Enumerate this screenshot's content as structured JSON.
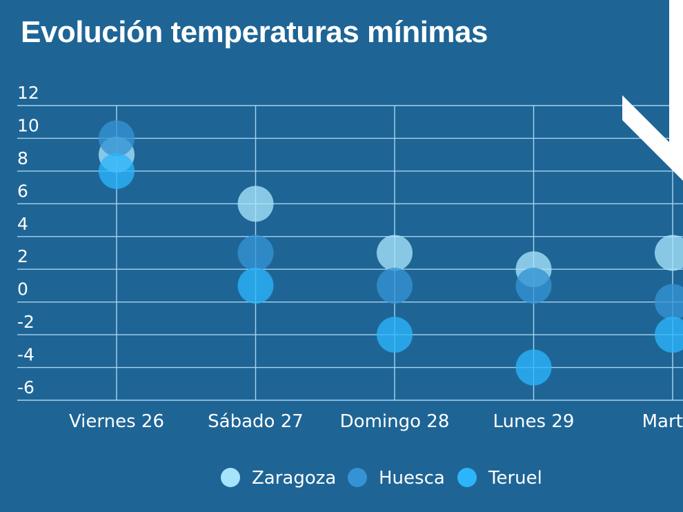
{
  "chart_data": {
    "type": "scatter",
    "title": "Evolución temperaturas mínimas",
    "categories": [
      "Viernes 26",
      "Sábado 27",
      "Domingo 28",
      "Lunes 29",
      "Martes"
    ],
    "ylim": [
      -6,
      12
    ],
    "yticks": [
      12,
      10,
      8,
      6,
      4,
      2,
      0,
      -2,
      -4,
      -6
    ],
    "grid": true,
    "legend_position": "bottom",
    "series": [
      {
        "name": "Zaragoza",
        "color": "#a6e4fb",
        "values": [
          9,
          6,
          3,
          2,
          3
        ]
      },
      {
        "name": "Huesca",
        "color": "#3493d4",
        "values": [
          10,
          3,
          1,
          1,
          0
        ]
      },
      {
        "name": "Teruel",
        "color": "#2cb5fb",
        "values": [
          8,
          1,
          -2,
          -4,
          -2
        ]
      }
    ]
  },
  "decoration": {
    "arrow_icon": "white-arrow-icon",
    "arrow_color": "#ffffff"
  }
}
